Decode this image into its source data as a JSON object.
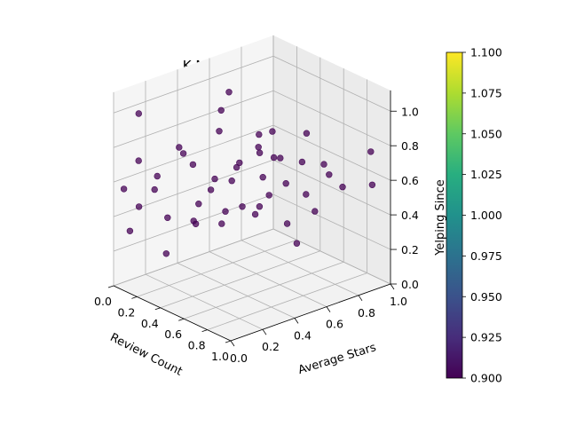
{
  "chart_data": {
    "type": "scatter",
    "title": "K Means Clustering",
    "xlabel": "Review Count",
    "ylabel": "Average Stars",
    "zlabel": "Yelping Since",
    "xlim": [
      0,
      1
    ],
    "ylim": [
      0,
      1
    ],
    "zlim": [
      0,
      1
    ],
    "x_ticks": [
      "0.0",
      "0.2",
      "0.4",
      "0.6",
      "0.8",
      "1.0"
    ],
    "y_ticks": [
      "0.0",
      "0.2",
      "0.4",
      "0.6",
      "0.8",
      "1.0"
    ],
    "z_ticks": [
      "0.0",
      "0.2",
      "0.4",
      "0.6",
      "0.8",
      "1.0"
    ],
    "grid": true,
    "projection": "3d",
    "colormap": "viridis",
    "point_color": "#440154",
    "colorbar": {
      "range": [
        0.9,
        1.1
      ],
      "ticks": [
        "0.900",
        "0.925",
        "0.950",
        "0.975",
        "1.000",
        "1.025",
        "1.050",
        "1.075",
        "1.100"
      ]
    },
    "series": [
      {
        "values_note_free": true,
        "points": [
          [
            0.02,
            0.05,
            0.55
          ],
          [
            0.03,
            0.08,
            0.3
          ],
          [
            0.05,
            0.12,
            0.7
          ],
          [
            0.08,
            0.1,
            0.45
          ],
          [
            0.1,
            0.2,
            0.6
          ],
          [
            0.12,
            0.25,
            0.35
          ],
          [
            0.15,
            0.3,
            0.75
          ],
          [
            0.05,
            0.22,
            0.5
          ],
          [
            0.2,
            0.35,
            0.65
          ],
          [
            0.18,
            0.4,
            0.4
          ],
          [
            0.25,
            0.45,
            0.55
          ],
          [
            0.22,
            0.5,
            0.8
          ],
          [
            0.3,
            0.55,
            0.6
          ],
          [
            0.28,
            0.6,
            0.35
          ],
          [
            0.35,
            0.65,
            0.7
          ],
          [
            0.32,
            0.7,
            0.5
          ],
          [
            0.4,
            0.75,
            0.62
          ],
          [
            0.38,
            0.8,
            0.45
          ],
          [
            0.45,
            0.85,
            0.58
          ],
          [
            0.42,
            0.9,
            0.72
          ],
          [
            0.5,
            0.95,
            0.55
          ],
          [
            0.05,
            0.4,
            0.65
          ],
          [
            0.08,
            0.55,
            0.4
          ],
          [
            0.1,
            0.6,
            0.85
          ],
          [
            0.12,
            0.7,
            0.52
          ],
          [
            0.15,
            0.8,
            0.66
          ],
          [
            0.02,
            0.9,
            0.48
          ],
          [
            0.06,
            0.95,
            0.6
          ],
          [
            0.6,
            0.3,
            0.7
          ],
          [
            0.65,
            0.2,
            0.5
          ],
          [
            0.7,
            0.4,
            0.55
          ],
          [
            0.75,
            0.15,
            0.62
          ],
          [
            0.8,
            0.5,
            0.45
          ],
          [
            0.85,
            0.35,
            0.68
          ],
          [
            0.9,
            0.6,
            0.52
          ],
          [
            0.95,
            0.45,
            0.4
          ],
          [
            1.0,
            0.7,
            0.66
          ],
          [
            0.55,
            0.6,
            0.72
          ],
          [
            0.62,
            0.75,
            0.48
          ],
          [
            0.68,
            0.85,
            0.58
          ],
          [
            0.9,
            0.95,
            0.75
          ],
          [
            0.98,
            0.9,
            0.6
          ],
          [
            0.02,
            0.5,
            0.2
          ],
          [
            0.04,
            0.3,
            0.1
          ],
          [
            0.03,
            0.7,
            0.9
          ],
          [
            0.01,
            0.15,
            0.95
          ],
          [
            0.05,
            0.85,
            0.15
          ],
          [
            0.07,
            0.45,
            0.25
          ]
        ]
      }
    ]
  }
}
